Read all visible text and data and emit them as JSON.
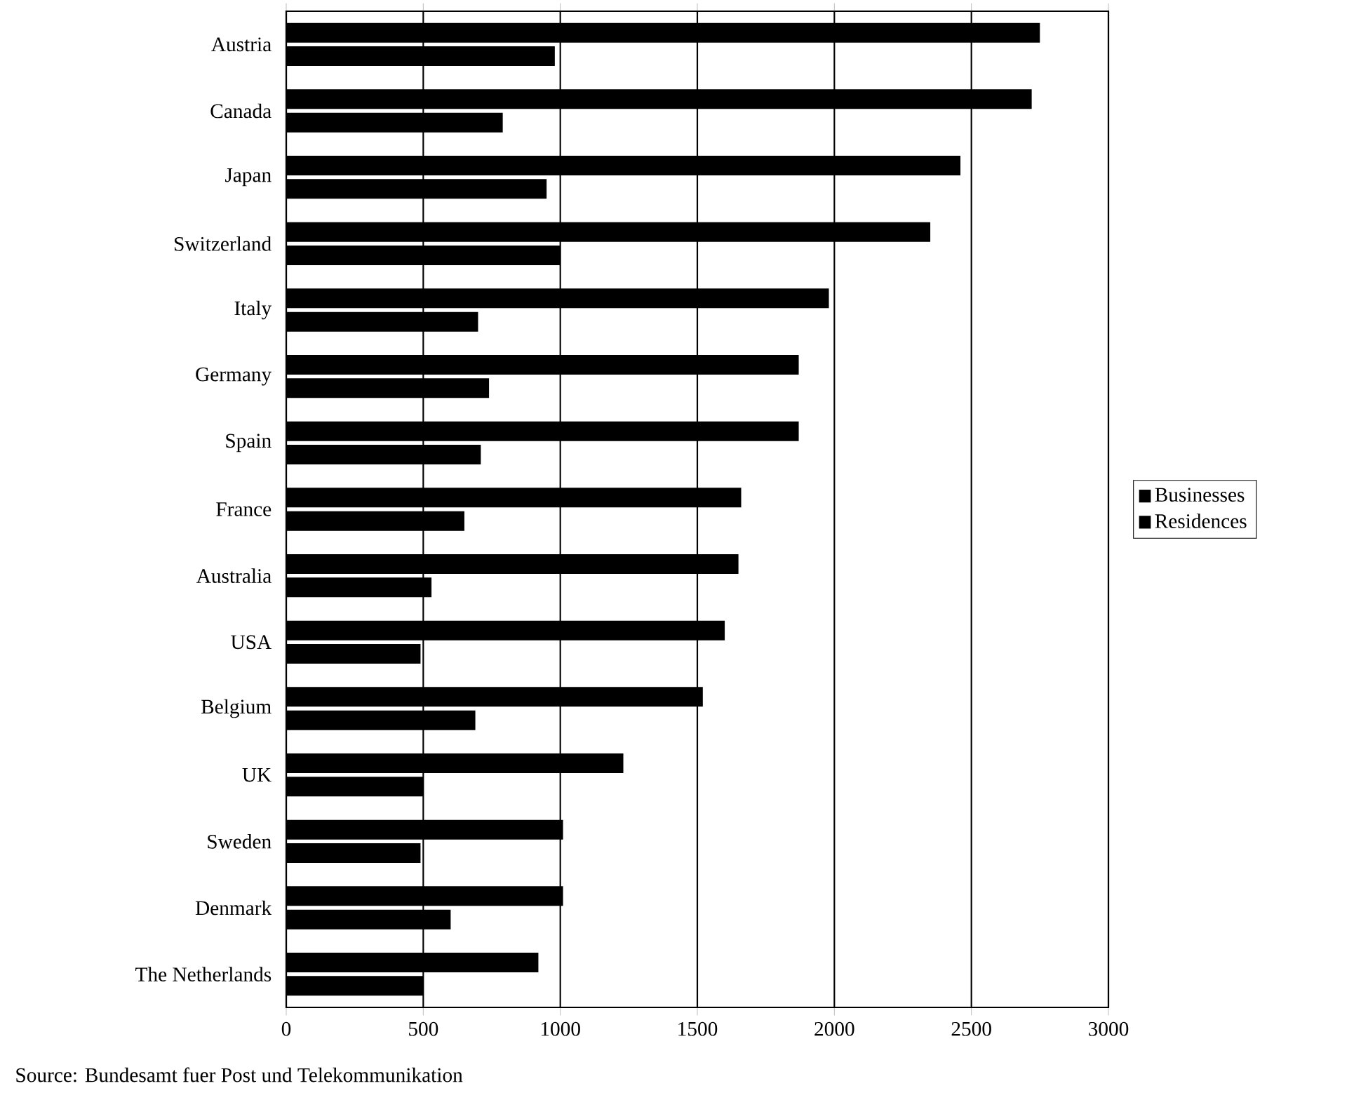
{
  "chart_data": {
    "type": "bar",
    "orientation": "horizontal",
    "categories": [
      "Austria",
      "Canada",
      "Japan",
      "Switzerland",
      "Italy",
      "Germany",
      "Spain",
      "France",
      "Australia",
      "USA",
      "Belgium",
      "UK",
      "Sweden",
      "Denmark",
      "The Netherlands"
    ],
    "series": [
      {
        "name": "Businesses",
        "color": "#000000",
        "values": [
          2750,
          2720,
          2460,
          2350,
          1980,
          1870,
          1870,
          1660,
          1650,
          1600,
          1520,
          1230,
          1010,
          1010,
          920
        ]
      },
      {
        "name": "Residences",
        "color": "#000000",
        "values": [
          980,
          790,
          950,
          1000,
          700,
          740,
          710,
          650,
          530,
          490,
          690,
          500,
          490,
          600,
          500
        ]
      }
    ],
    "xlim": [
      0,
      3000
    ],
    "xticks": [
      0,
      500,
      1000,
      1500,
      2000,
      2500,
      3000
    ],
    "grid": "x",
    "legend": "right",
    "annotations": [
      "Source: Bundesamt fuer Post und Telekommunikation"
    ]
  }
}
